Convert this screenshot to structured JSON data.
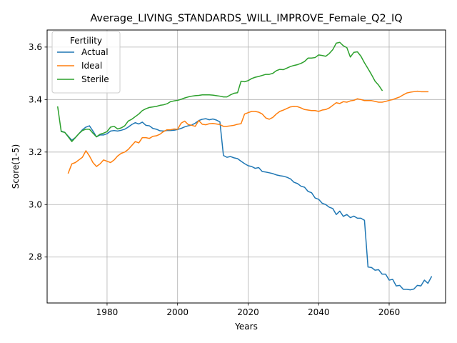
{
  "chart_data": {
    "type": "line",
    "title": "Average_LIVING_STANDARDS_WILL_IMPROVE_Female_Q2_IQ",
    "xlabel": "Years",
    "ylabel": "Score(1-5)",
    "xlim": [
      1963,
      2076
    ],
    "ylim": [
      2.625,
      3.665
    ],
    "xticks": [
      1980,
      2000,
      2020,
      2040,
      2060
    ],
    "yticks": [
      2.8,
      3.0,
      3.2,
      3.4,
      3.6
    ],
    "xtick_labels": [
      "1980",
      "2000",
      "2020",
      "2040",
      "2060"
    ],
    "ytick_labels": [
      "2.8",
      "3.0",
      "3.2",
      "3.4",
      "3.6"
    ],
    "grid": true,
    "legend": {
      "title": "Fertility",
      "placement": "upper-left"
    },
    "series": [
      {
        "name": "Actual",
        "color": "#1f77b4",
        "start_year": 1967,
        "values": [
          3.28,
          3.275,
          3.26,
          3.245,
          3.255,
          3.27,
          3.285,
          3.295,
          3.3,
          3.28,
          3.258,
          3.265,
          3.265,
          3.27,
          3.28,
          3.282,
          3.28,
          3.283,
          3.287,
          3.295,
          3.305,
          3.312,
          3.307,
          3.314,
          3.302,
          3.3,
          3.29,
          3.287,
          3.281,
          3.28,
          3.282,
          3.282,
          3.283,
          3.286,
          3.29,
          3.296,
          3.3,
          3.303,
          3.31,
          3.32,
          3.325,
          3.327,
          3.323,
          3.326,
          3.322,
          3.315,
          3.187,
          3.18,
          3.183,
          3.178,
          3.175,
          3.165,
          3.156,
          3.148,
          3.145,
          3.138,
          3.141,
          3.126,
          3.124,
          3.121,
          3.118,
          3.113,
          3.11,
          3.108,
          3.104,
          3.098,
          3.085,
          3.08,
          3.07,
          3.066,
          3.05,
          3.045,
          3.025,
          3.02,
          3.005,
          3.0,
          2.99,
          2.985,
          2.962,
          2.975,
          2.955,
          2.962,
          2.95,
          2.956,
          2.948,
          2.948,
          2.94,
          2.762,
          2.76,
          2.75,
          2.752,
          2.735,
          2.735,
          2.712,
          2.715,
          2.69,
          2.692,
          2.677,
          2.677,
          2.675,
          2.678,
          2.692,
          2.69,
          2.712,
          2.7,
          2.725
        ]
      },
      {
        "name": "Ideal",
        "color": "#ff7f0e",
        "start_year": 1969,
        "values": [
          3.12,
          3.155,
          3.16,
          3.17,
          3.18,
          3.205,
          3.185,
          3.16,
          3.145,
          3.155,
          3.17,
          3.165,
          3.16,
          3.17,
          3.185,
          3.195,
          3.2,
          3.21,
          3.225,
          3.24,
          3.235,
          3.255,
          3.255,
          3.252,
          3.26,
          3.262,
          3.268,
          3.278,
          3.285,
          3.285,
          3.288,
          3.287,
          3.31,
          3.318,
          3.305,
          3.302,
          3.298,
          3.32,
          3.306,
          3.304,
          3.308,
          3.309,
          3.307,
          3.305,
          3.298,
          3.298,
          3.3,
          3.302,
          3.306,
          3.308,
          3.345,
          3.35,
          3.355,
          3.355,
          3.352,
          3.345,
          3.33,
          3.325,
          3.332,
          3.345,
          3.355,
          3.36,
          3.366,
          3.372,
          3.374,
          3.373,
          3.368,
          3.362,
          3.36,
          3.358,
          3.358,
          3.355,
          3.36,
          3.362,
          3.368,
          3.378,
          3.388,
          3.385,
          3.392,
          3.39,
          3.395,
          3.397,
          3.403,
          3.4,
          3.396,
          3.396,
          3.396,
          3.393,
          3.39,
          3.39,
          3.393,
          3.397,
          3.4,
          3.405,
          3.41,
          3.418,
          3.425,
          3.428,
          3.43,
          3.432,
          3.43,
          3.43,
          3.43
        ]
      },
      {
        "name": "Sterile",
        "color": "#2ca02c",
        "start_year": 1966,
        "values": [
          3.372,
          3.278,
          3.275,
          3.258,
          3.24,
          3.255,
          3.27,
          3.282,
          3.287,
          3.287,
          3.272,
          3.258,
          3.268,
          3.272,
          3.278,
          3.295,
          3.298,
          3.288,
          3.292,
          3.3,
          3.318,
          3.325,
          3.335,
          3.345,
          3.358,
          3.365,
          3.37,
          3.372,
          3.374,
          3.378,
          3.38,
          3.384,
          3.392,
          3.395,
          3.397,
          3.401,
          3.406,
          3.41,
          3.413,
          3.415,
          3.416,
          3.418,
          3.418,
          3.418,
          3.417,
          3.415,
          3.413,
          3.41,
          3.41,
          3.418,
          3.424,
          3.426,
          3.47,
          3.468,
          3.472,
          3.48,
          3.485,
          3.488,
          3.492,
          3.496,
          3.496,
          3.5,
          3.51,
          3.515,
          3.514,
          3.52,
          3.526,
          3.53,
          3.533,
          3.538,
          3.545,
          3.558,
          3.558,
          3.56,
          3.57,
          3.568,
          3.565,
          3.575,
          3.59,
          3.615,
          3.618,
          3.605,
          3.598,
          3.562,
          3.58,
          3.582,
          3.565,
          3.54,
          3.518,
          3.495,
          3.47,
          3.455,
          3.435
        ]
      }
    ]
  }
}
